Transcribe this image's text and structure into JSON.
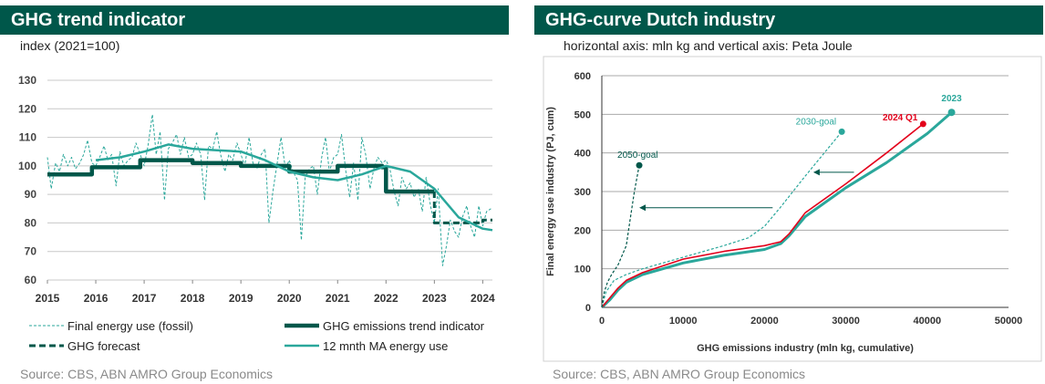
{
  "left_panel": {
    "title": "GHG trend indicator",
    "subtitle": "index (2021=100)",
    "source": "Source: CBS, ABN AMRO Group Economics",
    "legend": [
      {
        "label": "Final energy use (fossil)",
        "style": "dashed-thin",
        "color": "#2aa79b"
      },
      {
        "label": "GHG emissions trend indicator",
        "style": "thick",
        "color": "#00574a"
      },
      {
        "label": "GHG forecast",
        "style": "dashed-thick",
        "color": "#00574a"
      },
      {
        "label": "12 mnth MA energy use",
        "style": "solid",
        "color": "#2aa79b"
      }
    ]
  },
  "right_panel": {
    "title": "GHG-curve Dutch industry",
    "subtitle": "horizontal axis: mln kg and vertical axis: Peta Joule",
    "source": "Source: CBS, ABN AMRO Group Economics"
  },
  "colors": {
    "banner": "#00574a",
    "dark_green": "#00574a",
    "teal": "#2aa79b",
    "red": "#e3001b",
    "grid": "#c8c8c8"
  },
  "chart_data": [
    {
      "type": "line",
      "title": "GHG trend indicator",
      "subtitle": "index (2021=100)",
      "xlabel": "",
      "ylabel": "",
      "xlim": [
        2015,
        2024.2
      ],
      "ylim": [
        60,
        130
      ],
      "yticks": [
        60,
        70,
        80,
        90,
        100,
        110,
        120,
        130
      ],
      "xticks": [
        2015,
        2016,
        2017,
        2018,
        2019,
        2020,
        2021,
        2022,
        2023,
        2024
      ],
      "grid": true,
      "legend_position": "bottom",
      "series": [
        {
          "name": "Final energy use (fossil)",
          "style": "dashed",
          "color": "#2aa79b",
          "x": [
            2015.0,
            2015.08,
            2015.17,
            2015.25,
            2015.33,
            2015.42,
            2015.5,
            2015.58,
            2015.67,
            2015.75,
            2015.83,
            2015.92,
            2016.0,
            2016.08,
            2016.17,
            2016.25,
            2016.33,
            2016.42,
            2016.5,
            2016.58,
            2016.67,
            2016.75,
            2016.83,
            2016.92,
            2017.0,
            2017.08,
            2017.17,
            2017.25,
            2017.33,
            2017.42,
            2017.5,
            2017.58,
            2017.67,
            2017.75,
            2017.83,
            2017.92,
            2018.0,
            2018.08,
            2018.17,
            2018.25,
            2018.33,
            2018.42,
            2018.5,
            2018.58,
            2018.67,
            2018.75,
            2018.83,
            2018.92,
            2019.0,
            2019.08,
            2019.17,
            2019.25,
            2019.33,
            2019.42,
            2019.5,
            2019.58,
            2019.67,
            2019.75,
            2019.83,
            2019.92,
            2020.0,
            2020.08,
            2020.17,
            2020.25,
            2020.33,
            2020.42,
            2020.5,
            2020.58,
            2020.67,
            2020.75,
            2020.83,
            2020.92,
            2021.0,
            2021.08,
            2021.17,
            2021.25,
            2021.33,
            2021.42,
            2021.5,
            2021.58,
            2021.67,
            2021.75,
            2021.83,
            2021.92,
            2022.0,
            2022.08,
            2022.17,
            2022.25,
            2022.33,
            2022.42,
            2022.5,
            2022.58,
            2022.67,
            2022.75,
            2022.83,
            2022.92,
            2023.0,
            2023.08,
            2023.17,
            2023.25,
            2023.33,
            2023.42,
            2023.5,
            2023.58,
            2023.67,
            2023.75,
            2023.83,
            2023.92,
            2024.0,
            2024.08,
            2024.17
          ],
          "values": [
            103,
            92,
            101,
            98,
            104,
            100,
            103,
            99,
            101,
            104,
            109,
            101,
            100,
            103,
            107,
            102,
            104,
            93,
            105,
            100,
            102,
            103,
            108,
            104,
            100,
            107,
            118,
            104,
            112,
            88,
            106,
            108,
            111,
            104,
            110,
            103,
            104,
            108,
            104,
            88,
            107,
            106,
            112,
            104,
            98,
            104,
            102,
            108,
            104,
            100,
            110,
            101,
            99,
            104,
            106,
            80,
            92,
            101,
            110,
            99,
            102,
            98,
            95,
            74,
            96,
            99,
            100,
            90,
            103,
            110,
            98,
            103,
            104,
            111,
            98,
            89,
            101,
            88,
            110,
            104,
            92,
            99,
            103,
            101,
            102,
            99,
            91,
            86,
            96,
            92,
            94,
            89,
            92,
            84,
            96,
            86,
            80,
            92,
            65,
            72,
            81,
            77,
            75,
            82,
            86,
            79,
            75,
            86,
            79,
            84,
            85
          ]
        },
        {
          "name": "GHG emissions trend indicator",
          "style": "thick",
          "color": "#00574a",
          "x": [
            2015,
            2015.92,
            2015.92,
            2016.92,
            2016.92,
            2018.0,
            2018.0,
            2019.0,
            2019.0,
            2020.0,
            2020.0,
            2021.0,
            2021.0,
            2021.92,
            2021.92,
            2022.0,
            2022.0,
            2023.0
          ],
          "values": [
            97,
            97,
            99.5,
            99.5,
            102,
            102,
            101,
            101,
            100,
            100,
            98,
            98,
            100,
            100,
            99.5,
            99.5,
            91,
            91
          ]
        },
        {
          "name": "GHG forecast",
          "style": "dashed-thick",
          "color": "#00574a",
          "x": [
            2023.0,
            2023.0,
            2024.0,
            2024.0,
            2024.2
          ],
          "values": [
            91,
            80,
            80,
            81,
            81
          ]
        },
        {
          "name": "12 mnth MA energy use",
          "style": "solid",
          "color": "#2aa79b",
          "x": [
            2016.0,
            2016.5,
            2017.0,
            2017.5,
            2018.0,
            2018.5,
            2019.0,
            2019.5,
            2020.0,
            2020.5,
            2021.0,
            2021.5,
            2022.0,
            2022.5,
            2023.0,
            2023.5,
            2024.0,
            2024.2
          ],
          "values": [
            102,
            103,
            105,
            107.5,
            106,
            105.5,
            105,
            102,
            98,
            96,
            95,
            97,
            100,
            98,
            92,
            82,
            78,
            77.5
          ]
        }
      ]
    },
    {
      "type": "line",
      "title": "GHG-curve Dutch industry",
      "subtitle": "horizontal axis: mln kg and vertical axis: Peta Joule",
      "xlabel": "GHG emissions industry (mln kg, cumulative)",
      "ylabel": "Final energy use industry (PJ, cum)",
      "xlim": [
        0,
        50000
      ],
      "ylim": [
        0,
        600
      ],
      "xticks": [
        0,
        10000,
        20000,
        30000,
        40000,
        50000
      ],
      "yticks": [
        0,
        100,
        200,
        300,
        400,
        500,
        600
      ],
      "grid": true,
      "series": [
        {
          "name": "2023",
          "style": "thick",
          "color": "#2aa79b",
          "x": [
            0,
            1000,
            2000,
            3000,
            5000,
            10000,
            15000,
            20000,
            22000,
            23000,
            25000,
            30000,
            35000,
            40000,
            43000
          ],
          "values": [
            0,
            20,
            45,
            65,
            85,
            115,
            135,
            150,
            165,
            185,
            235,
            310,
            375,
            450,
            505
          ],
          "endpoint_label": "2023"
        },
        {
          "name": "2024 Q1",
          "style": "solid",
          "color": "#e3001b",
          "x": [
            0,
            1000,
            2000,
            3000,
            5000,
            10000,
            15000,
            20000,
            22000,
            23000,
            25000,
            30000,
            35000,
            39500
          ],
          "values": [
            0,
            25,
            50,
            70,
            90,
            125,
            145,
            160,
            170,
            190,
            245,
            320,
            400,
            475
          ],
          "endpoint_label": "2024 Q1"
        },
        {
          "name": "2030-goal",
          "style": "dashed",
          "color": "#2aa79b",
          "x": [
            0,
            500,
            1500,
            3000,
            5000,
            10000,
            15000,
            18000,
            20000,
            22000,
            25000,
            29500
          ],
          "values": [
            0,
            40,
            70,
            85,
            100,
            130,
            160,
            180,
            210,
            260,
            340,
            455
          ],
          "endpoint_label": "2030-goal"
        },
        {
          "name": "2050-goal",
          "style": "dashed",
          "color": "#00574a",
          "x": [
            0,
            300,
            700,
            1200,
            2000,
            3000,
            3500,
            4000,
            4600
          ],
          "values": [
            0,
            40,
            65,
            85,
            110,
            160,
            230,
            300,
            368
          ],
          "endpoint_label": "2050-goal"
        }
      ],
      "arrows": [
        {
          "from": [
            31000,
            350
          ],
          "to": [
            26000,
            350
          ]
        },
        {
          "from": [
            21000,
            258
          ],
          "to": [
            4600,
            258
          ]
        }
      ]
    }
  ]
}
